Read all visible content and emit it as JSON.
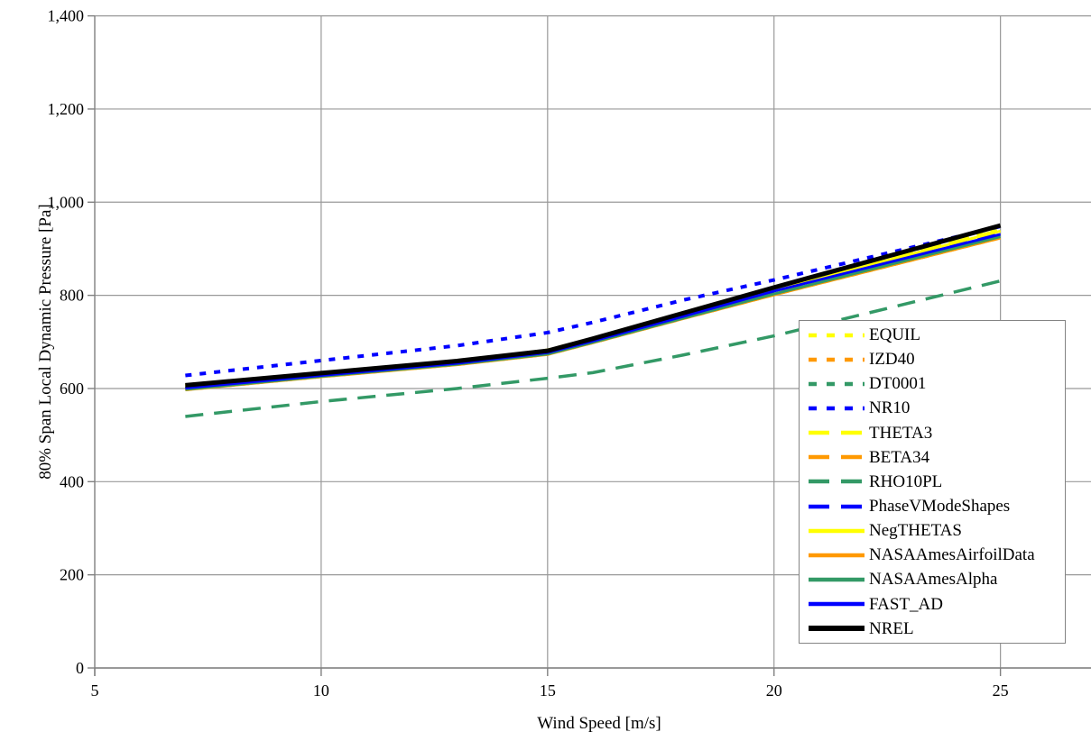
{
  "chart_data": {
    "type": "line",
    "title": "",
    "xlabel": "Wind Speed [m/s]",
    "ylabel": "80% Span Local Dynamic Pressure [Pa]",
    "xlim": [
      5,
      27
    ],
    "ylim": [
      0,
      1400
    ],
    "grid": true,
    "grid_color": "#999999",
    "axis_color": "#808080",
    "legend_position": "inside-right-bottom",
    "x_ticks": [
      5,
      10,
      15,
      20,
      25
    ],
    "x_tick_labels": [
      "5",
      "10",
      "15",
      "20",
      "25"
    ],
    "y_ticks": [
      0,
      200,
      400,
      600,
      800,
      1000,
      1200,
      1400
    ],
    "y_tick_labels": [
      "0",
      "200",
      "400",
      "600",
      "800",
      "1,000",
      "1,200",
      "1,400"
    ],
    "x": [
      7,
      10,
      13,
      15,
      16,
      18,
      20,
      25
    ],
    "series": [
      {
        "name": "EQUIL",
        "color": "#FFFF00",
        "dash": "short-dash",
        "width": 4,
        "values": [
          606,
          632,
          658,
          682,
          707,
          761,
          815,
          942
        ]
      },
      {
        "name": "IZD40",
        "color": "#FF9900",
        "dash": "short-dash",
        "width": 4,
        "values": [
          598,
          626,
          652,
          674,
          699,
          751,
          802,
          924
        ]
      },
      {
        "name": "DT0001",
        "color": "#339966",
        "dash": "short-dash",
        "width": 4,
        "values": [
          600,
          627,
          653,
          676,
          701,
          753,
          804,
          927
        ]
      },
      {
        "name": "NR10",
        "color": "#0000FF",
        "dash": "short-dash",
        "width": 4,
        "values": [
          628,
          660,
          692,
          720,
          742,
          790,
          833,
          948
        ]
      },
      {
        "name": "THETA3",
        "color": "#FFFF00",
        "dash": "long-dash",
        "width": 3.5,
        "values": [
          605,
          632,
          658,
          681,
          706,
          760,
          814,
          940
        ]
      },
      {
        "name": "BETA34",
        "color": "#FF9900",
        "dash": "long-dash",
        "width": 3.5,
        "values": [
          599,
          627,
          653,
          675,
          700,
          752,
          803,
          924
        ]
      },
      {
        "name": "RHO10PL",
        "color": "#339966",
        "dash": "long-dash",
        "width": 3.5,
        "values": [
          540,
          572,
          600,
          622,
          634,
          672,
          713,
          831
        ]
      },
      {
        "name": "PhaseVModeShapes",
        "color": "#0000FF",
        "dash": "long-dash",
        "width": 3.5,
        "values": [
          603,
          630,
          656,
          679,
          704,
          757,
          810,
          933
        ]
      },
      {
        "name": "NegTHETAS",
        "color": "#FFFF00",
        "dash": "solid",
        "width": 3,
        "values": [
          604,
          631,
          657,
          680,
          705,
          758,
          812,
          938
        ]
      },
      {
        "name": "NASAAmesAirfoilData",
        "color": "#FF9900",
        "dash": "solid",
        "width": 3,
        "values": [
          597,
          625,
          651,
          673,
          698,
          750,
          801,
          923
        ]
      },
      {
        "name": "NASAAmesAlpha",
        "color": "#339966",
        "dash": "solid",
        "width": 3,
        "values": [
          598,
          626,
          652,
          674,
          699,
          751,
          803,
          926
        ]
      },
      {
        "name": "FAST_AD",
        "color": "#0000FF",
        "dash": "solid",
        "width": 3,
        "values": [
          601,
          628,
          654,
          677,
          702,
          755,
          809,
          931
        ]
      },
      {
        "name": "NREL",
        "color": "#000000",
        "dash": "solid",
        "width": 5,
        "values": [
          607,
          633,
          659,
          681,
          707,
          762,
          817,
          950
        ]
      }
    ]
  }
}
